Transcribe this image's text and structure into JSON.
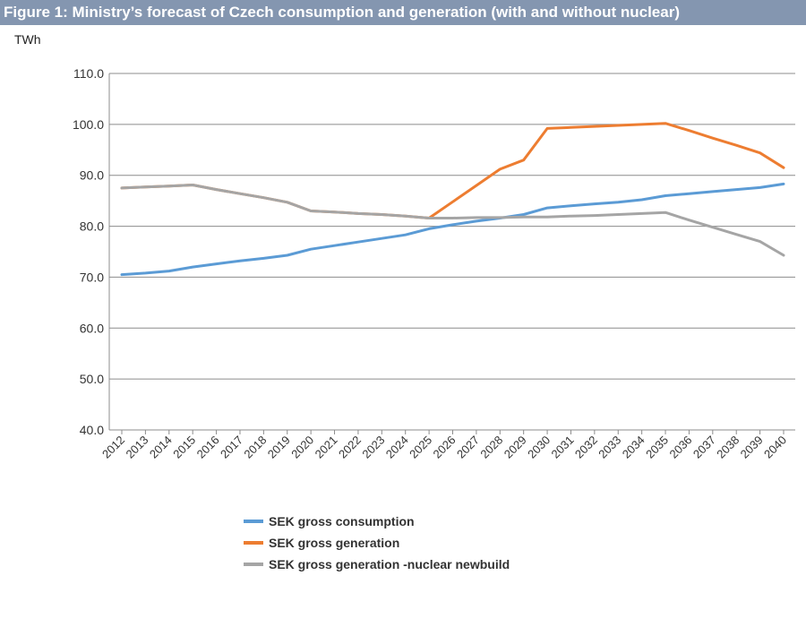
{
  "header": {
    "title": "Figure 1: Ministry’s forecast of Czech consumption and generation (with and without nuclear)"
  },
  "chart_data": {
    "type": "line",
    "title": "Figure 1: Ministry’s forecast of Czech consumption and generation (with and without nuclear)",
    "ylabel": "TWh",
    "xlabel": "",
    "ylim": [
      40,
      110
    ],
    "yticks": [
      "40.0",
      "50.0",
      "60.0",
      "70.0",
      "80.0",
      "90.0",
      "100.0",
      "110.0"
    ],
    "categories": [
      "2012",
      "2013",
      "2014",
      "2015",
      "2016",
      "2017",
      "2018",
      "2019",
      "2020",
      "2021",
      "2022",
      "2023",
      "2024",
      "2025",
      "2026",
      "2027",
      "2028",
      "2029",
      "2030",
      "2031",
      "2032",
      "2033",
      "2034",
      "2035",
      "2036",
      "2037",
      "2038",
      "2039",
      "2040"
    ],
    "grid": "horizontal",
    "legend_position": "bottom",
    "series": [
      {
        "name": "SEK gross consumption",
        "color": "#5b9bd5",
        "values": [
          70.5,
          70.8,
          71.2,
          72.0,
          72.6,
          73.2,
          73.7,
          74.3,
          75.5,
          76.2,
          76.9,
          77.6,
          78.3,
          79.5,
          80.3,
          81.0,
          81.6,
          82.3,
          83.6,
          84.0,
          84.4,
          84.7,
          85.2,
          86.0,
          86.4,
          86.8,
          87.2,
          87.6,
          88.3
        ]
      },
      {
        "name": "SEK gross generation",
        "color": "#ed7d31",
        "values": [
          87.5,
          87.7,
          87.9,
          88.1,
          87.2,
          86.4,
          85.6,
          84.7,
          83.0,
          82.8,
          82.5,
          82.3,
          82.0,
          81.6,
          84.8,
          88.0,
          91.2,
          93.0,
          99.2,
          99.4,
          99.6,
          99.8,
          100.0,
          100.2,
          98.8,
          97.3,
          95.9,
          94.4,
          91.5
        ]
      },
      {
        "name": "SEK gross generation -nuclear newbuild",
        "color": "#a5a5a5",
        "values": [
          87.5,
          87.7,
          87.9,
          88.1,
          87.2,
          86.4,
          85.6,
          84.7,
          83.0,
          82.8,
          82.5,
          82.3,
          82.0,
          81.6,
          81.6,
          81.7,
          81.7,
          81.8,
          81.8,
          82.0,
          82.1,
          82.3,
          82.5,
          82.7,
          81.2,
          79.8,
          78.4,
          77.0,
          74.3
        ]
      }
    ]
  }
}
